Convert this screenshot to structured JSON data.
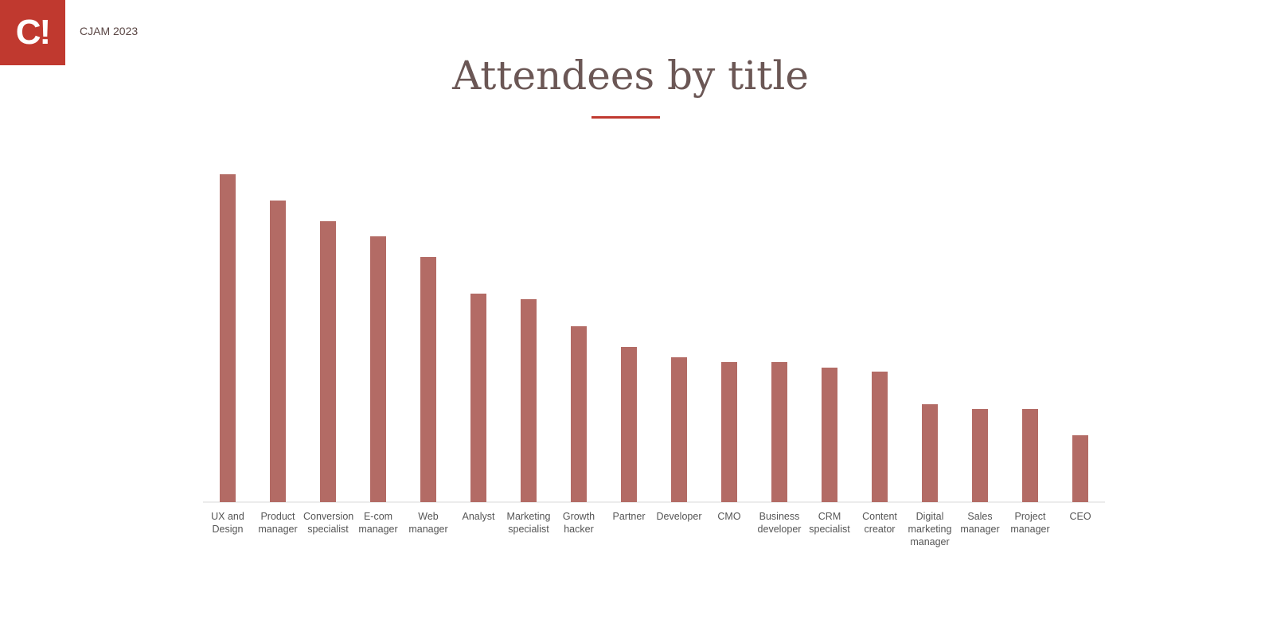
{
  "header": {
    "logo": "C!",
    "event": "CJAM 2023"
  },
  "chart_data": {
    "type": "bar",
    "title": "Attendees by title",
    "categories": [
      "UX and Design",
      "Product manager",
      "Conversion specialist",
      "E-com manager",
      "Web manager",
      "Analyst",
      "Marketing specialist",
      "Growth hacker",
      "Partner",
      "Developer",
      "CMO",
      "Business developer",
      "CRM specialist",
      "Content creator",
      "Digital marketing manager",
      "Sales manager",
      "Project manager",
      "CEO"
    ],
    "values": [
      412,
      379,
      353,
      334,
      308,
      262,
      255,
      221,
      195,
      182,
      176,
      176,
      169,
      164,
      123,
      117,
      117,
      84
    ],
    "color": "#b36b65",
    "ylim": [
      0,
      460
    ]
  }
}
